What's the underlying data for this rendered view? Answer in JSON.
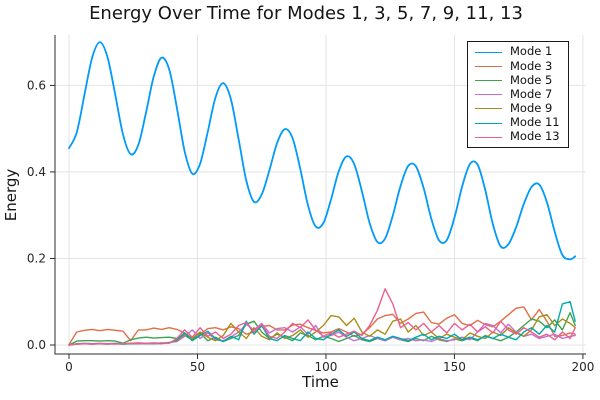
{
  "chart_data": {
    "type": "line",
    "title": "Energy Over Time for Modes 1, 3, 5, 7, 9, 11, 13",
    "xlabel": "Time",
    "ylabel": "Energy",
    "xlim": [
      -5.45,
      201.2
    ],
    "ylim": [
      -0.0208,
      0.7165
    ],
    "grid": true,
    "legend_position": "top-right",
    "x_ticks": {
      "values": [
        0,
        50,
        100,
        150,
        200
      ],
      "labels": [
        "0",
        "50",
        "100",
        "150",
        "200"
      ]
    },
    "y_ticks": {
      "values": [
        0.0,
        0.2,
        0.4,
        0.6
      ],
      "labels": [
        "0.0",
        "0.2",
        "0.4",
        "0.6"
      ]
    },
    "x": [
      0,
      3,
      6,
      9,
      12,
      15,
      18,
      21,
      24,
      27,
      30,
      33,
      36,
      39,
      42,
      45,
      48,
      51,
      54,
      57,
      60,
      63,
      66,
      69,
      72,
      75,
      78,
      81,
      84,
      87,
      90,
      93,
      96,
      99,
      102,
      105,
      108,
      111,
      114,
      117,
      120,
      123,
      126,
      129,
      132,
      135,
      138,
      141,
      144,
      147,
      150,
      153,
      156,
      159,
      162,
      165,
      168,
      171,
      174,
      177,
      180,
      183,
      186,
      189,
      192,
      195,
      197
    ],
    "series": [
      {
        "name": "Mode 1",
        "color": "#009AFA",
        "smooth": true,
        "line_width": 1.8,
        "values": [
          0.455,
          0.491,
          0.578,
          0.664,
          0.7,
          0.665,
          0.578,
          0.487,
          0.441,
          0.463,
          0.538,
          0.621,
          0.664,
          0.637,
          0.548,
          0.448,
          0.396,
          0.419,
          0.493,
          0.572,
          0.605,
          0.568,
          0.476,
          0.38,
          0.331,
          0.348,
          0.404,
          0.467,
          0.499,
          0.478,
          0.407,
          0.323,
          0.274,
          0.282,
          0.337,
          0.402,
          0.436,
          0.418,
          0.355,
          0.282,
          0.238,
          0.246,
          0.299,
          0.367,
          0.414,
          0.413,
          0.363,
          0.292,
          0.242,
          0.242,
          0.294,
          0.366,
          0.418,
          0.417,
          0.358,
          0.278,
          0.228,
          0.233,
          0.272,
          0.326,
          0.365,
          0.371,
          0.33,
          0.262,
          0.208,
          0.198,
          0.205
        ]
      },
      {
        "name": "Mode 3",
        "color": "#E26E47",
        "smooth": false,
        "line_width": 1.4,
        "values": [
          0.001,
          0.03,
          0.034,
          0.036,
          0.033,
          0.036,
          0.034,
          0.032,
          0.01,
          0.035,
          0.035,
          0.039,
          0.036,
          0.04,
          0.036,
          0.028,
          0.015,
          0.025,
          0.038,
          0.04,
          0.035,
          0.042,
          0.038,
          0.025,
          0.03,
          0.043,
          0.045,
          0.035,
          0.035,
          0.046,
          0.048,
          0.04,
          0.034,
          0.028,
          0.03,
          0.038,
          0.03,
          0.02,
          0.025,
          0.04,
          0.06,
          0.068,
          0.071,
          0.05,
          0.06,
          0.073,
          0.076,
          0.052,
          0.048,
          0.062,
          0.07,
          0.05,
          0.045,
          0.057,
          0.047,
          0.042,
          0.055,
          0.07,
          0.085,
          0.088,
          0.058,
          0.082,
          0.055,
          0.02,
          0.022,
          0.028,
          0.025
        ]
      },
      {
        "name": "Mode 5",
        "color": "#3DA44E",
        "smooth": false,
        "line_width": 1.4,
        "values": [
          0.0,
          0.009,
          0.01,
          0.01,
          0.009,
          0.01,
          0.009,
          0.004,
          0.012,
          0.016,
          0.018,
          0.016,
          0.017,
          0.018,
          0.015,
          0.022,
          0.012,
          0.028,
          0.01,
          0.018,
          0.008,
          0.015,
          0.022,
          0.048,
          0.055,
          0.03,
          0.015,
          0.025,
          0.018,
          0.01,
          0.028,
          0.022,
          0.012,
          0.02,
          0.015,
          0.008,
          0.015,
          0.022,
          0.012,
          0.008,
          0.015,
          0.01,
          0.018,
          0.012,
          0.008,
          0.015,
          0.01,
          0.02,
          0.012,
          0.008,
          0.014,
          0.01,
          0.016,
          0.01,
          0.022,
          0.015,
          0.01,
          0.018,
          0.03,
          0.045,
          0.06,
          0.055,
          0.04,
          0.058,
          0.035,
          0.075,
          0.045
        ]
      },
      {
        "name": "Mode 7",
        "color": "#C271D2",
        "smooth": false,
        "line_width": 1.4,
        "values": [
          0.0,
          0.003,
          0.004,
          0.003,
          0.004,
          0.003,
          0.004,
          0.002,
          0.004,
          0.005,
          0.004,
          0.005,
          0.004,
          0.006,
          0.008,
          0.02,
          0.035,
          0.015,
          0.028,
          0.012,
          0.01,
          0.018,
          0.03,
          0.048,
          0.035,
          0.05,
          0.028,
          0.038,
          0.04,
          0.03,
          0.042,
          0.025,
          0.045,
          0.018,
          0.022,
          0.03,
          0.018,
          0.01,
          0.015,
          0.022,
          0.015,
          0.01,
          0.018,
          0.012,
          0.015,
          0.01,
          0.012,
          0.008,
          0.015,
          0.01,
          0.012,
          0.018,
          0.012,
          0.03,
          0.05,
          0.045,
          0.028,
          0.048,
          0.03,
          0.02,
          0.025,
          0.015,
          0.02,
          0.025,
          0.015,
          0.02,
          0.022
        ]
      },
      {
        "name": "Mode 9",
        "color": "#AC8D18",
        "smooth": false,
        "line_width": 1.4,
        "values": [
          0.0,
          0.002,
          0.003,
          0.002,
          0.003,
          0.002,
          0.003,
          0.002,
          0.003,
          0.004,
          0.003,
          0.004,
          0.003,
          0.005,
          0.01,
          0.025,
          0.015,
          0.03,
          0.018,
          0.01,
          0.022,
          0.05,
          0.03,
          0.015,
          0.04,
          0.02,
          0.012,
          0.028,
          0.015,
          0.022,
          0.035,
          0.018,
          0.03,
          0.045,
          0.068,
          0.065,
          0.045,
          0.062,
          0.03,
          0.02,
          0.035,
          0.025,
          0.055,
          0.06,
          0.03,
          0.045,
          0.022,
          0.03,
          0.015,
          0.025,
          0.018,
          0.012,
          0.028,
          0.02,
          0.015,
          0.03,
          0.022,
          0.04,
          0.028,
          0.02,
          0.035,
          0.065,
          0.07,
          0.045,
          0.06,
          0.05,
          0.04
        ]
      },
      {
        "name": "Mode 11",
        "color": "#00A9AD",
        "smooth": false,
        "line_width": 1.4,
        "values": [
          0.0,
          0.002,
          0.003,
          0.002,
          0.003,
          0.002,
          0.003,
          0.002,
          0.003,
          0.003,
          0.004,
          0.003,
          0.004,
          0.005,
          0.012,
          0.028,
          0.01,
          0.022,
          0.032,
          0.015,
          0.008,
          0.02,
          0.012,
          0.055,
          0.025,
          0.045,
          0.015,
          0.01,
          0.022,
          0.015,
          0.01,
          0.03,
          0.015,
          0.012,
          0.025,
          0.035,
          0.02,
          0.03,
          0.015,
          0.01,
          0.018,
          0.012,
          0.02,
          0.015,
          0.01,
          0.018,
          0.025,
          0.012,
          0.02,
          0.015,
          0.025,
          0.012,
          0.018,
          0.012,
          0.02,
          0.015,
          0.025,
          0.018,
          0.012,
          0.03,
          0.04,
          0.025,
          0.045,
          0.03,
          0.095,
          0.1,
          0.055
        ]
      },
      {
        "name": "Mode 13",
        "color": "#ED5E93",
        "smooth": false,
        "line_width": 1.4,
        "values": [
          0.0,
          0.002,
          0.003,
          0.002,
          0.003,
          0.003,
          0.002,
          0.003,
          0.004,
          0.003,
          0.004,
          0.003,
          0.005,
          0.004,
          0.015,
          0.035,
          0.018,
          0.04,
          0.02,
          0.03,
          0.015,
          0.025,
          0.045,
          0.052,
          0.03,
          0.048,
          0.02,
          0.015,
          0.03,
          0.05,
          0.04,
          0.058,
          0.035,
          0.02,
          0.028,
          0.018,
          0.025,
          0.032,
          0.022,
          0.045,
          0.08,
          0.13,
          0.095,
          0.04,
          0.052,
          0.035,
          0.05,
          0.03,
          0.045,
          0.028,
          0.05,
          0.035,
          0.048,
          0.03,
          0.042,
          0.028,
          0.055,
          0.035,
          0.025,
          0.04,
          0.03,
          0.018,
          0.025,
          0.012,
          0.03,
          0.015,
          0.04
        ]
      }
    ]
  },
  "style_colors": {
    "background": "#FFFFFF",
    "grid": "#E4E4E8",
    "spine": "#2D2D33",
    "tick_label": "#262626",
    "title_text": "#151515",
    "legend_border": "#1A1A1A"
  }
}
